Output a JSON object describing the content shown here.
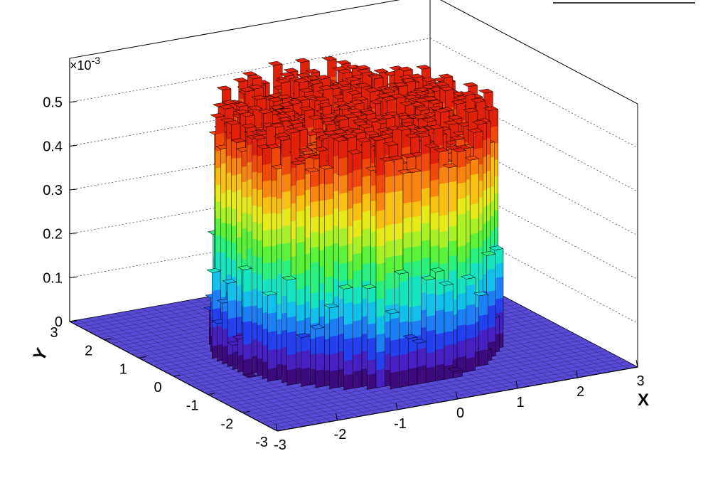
{
  "chart_data": {
    "type": "lego3d",
    "description_of_shape": "cylinder",
    "x": {
      "label": "X",
      "range": [
        -3,
        3
      ],
      "ticks": [
        "-3",
        "-2",
        "-1",
        "0",
        "1",
        "2",
        "3"
      ]
    },
    "y": {
      "label": "Y",
      "range": [
        -3,
        3
      ],
      "ticks": [
        "-3",
        "-2",
        "-1",
        "0",
        "1",
        "2",
        "3"
      ]
    },
    "z": {
      "range": [
        0,
        0.0006
      ],
      "ticks": [
        "0",
        "0.1",
        "0.2",
        "0.3",
        "0.4",
        "0.5"
      ],
      "exponent_label": "×10",
      "exponent_power": "-3"
    },
    "bins": {
      "nx": 40,
      "ny": 40
    },
    "distribution": {
      "shape": "uniform disk",
      "radius": 2.0,
      "height_1e3": 0.52
    },
    "grid": true,
    "colors": {
      "palette": [
        "#3c0b7e",
        "#4720c2",
        "#2441ee",
        "#1d7ff5",
        "#12c0ea",
        "#16e3c0",
        "#2bf07e",
        "#5cf23b",
        "#a9f026",
        "#e6ea1a",
        "#f8c012",
        "#f8860e",
        "#f04a0a",
        "#e0210a"
      ],
      "floor": "#5a4bd6"
    }
  }
}
